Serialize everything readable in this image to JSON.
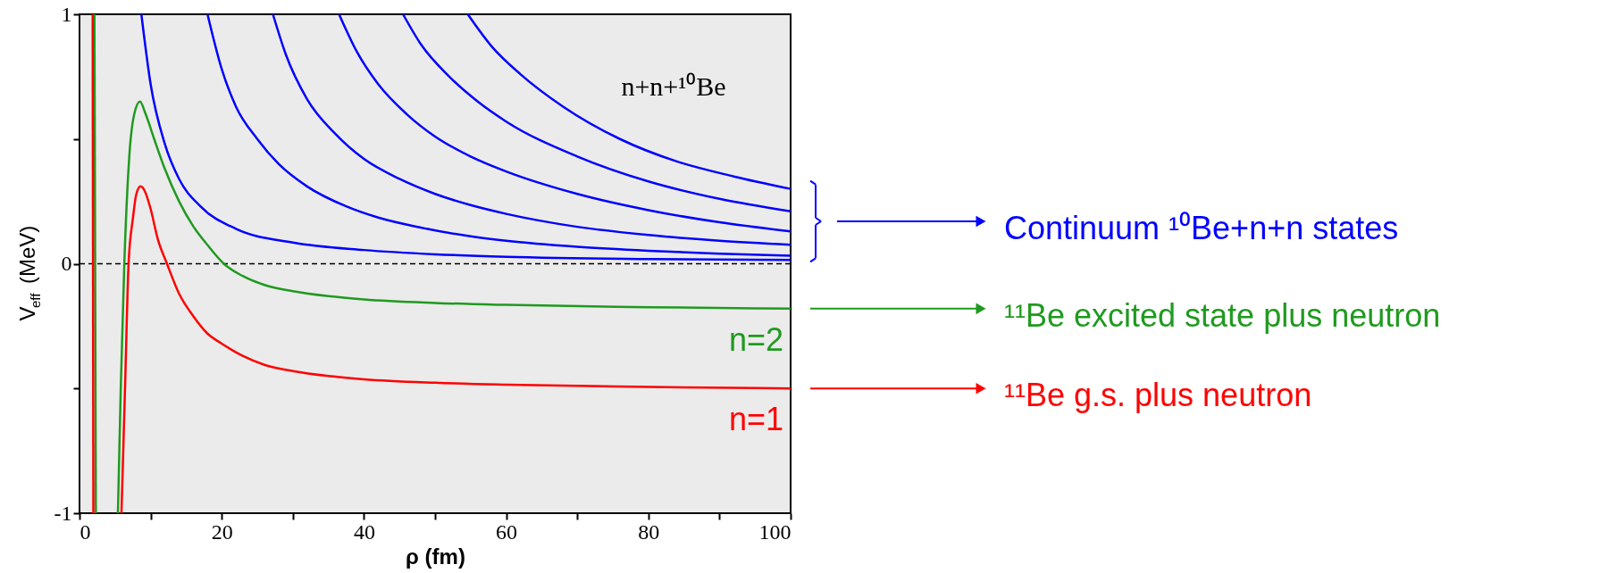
{
  "chart_data": {
    "type": "line",
    "xlabel": "ρ (fm)",
    "ylabel": "V$_{eff}$ (MeV)",
    "xlim": [
      0,
      100
    ],
    "ylim": [
      -1,
      1
    ],
    "xticks": [
      0,
      {
        "value": 10,
        "label": null
      },
      20,
      {
        "value": 30,
        "label": null
      },
      40,
      {
        "value": 50,
        "label": null
      },
      60,
      {
        "value": 70,
        "label": null
      },
      80,
      {
        "value": 90,
        "label": null
      },
      100
    ],
    "yticks": [
      -1,
      {
        "value": -0.5,
        "label": null
      },
      0,
      {
        "value": 0.5,
        "label": null
      },
      1
    ],
    "grid": false,
    "line_style": "solid",
    "ref_lines": [
      {
        "axis": "y",
        "value": 0,
        "color": "#000000",
        "line_style": "dashed"
      }
    ],
    "annotations": [
      "n+n+¹⁰Be",
      "Continuum ¹⁰Be+n+n states",
      "¹¹Be excited state plus neutron",
      "¹¹Be g.s. plus neutron"
    ],
    "series": [
      {
        "color": "#0000ff",
        "x": [
          8.7,
          10,
          12,
          14,
          17,
          22,
          30,
          40,
          50,
          60,
          80,
          100
        ],
        "values": [
          1,
          0.72,
          0.48,
          0.34,
          0.23,
          0.14,
          0.085,
          0.055,
          0.038,
          0.028,
          0.019,
          0.015
        ]
      },
      {
        "color": "#0000ff",
        "x": [
          18,
          20,
          22,
          25,
          28,
          32,
          37.5,
          42,
          48,
          55,
          60,
          70,
          80,
          90,
          100
        ],
        "values": [
          1,
          0.78,
          0.63,
          0.5,
          0.4,
          0.31,
          0.23,
          0.185,
          0.145,
          0.11,
          0.092,
          0.068,
          0.052,
          0.04,
          0.032
        ]
      },
      {
        "color": "#0000ff",
        "x": [
          27.2,
          29,
          32,
          36,
          40,
          45,
          50,
          55,
          60,
          70,
          80,
          90,
          100
        ],
        "values": [
          1,
          0.84,
          0.66,
          0.52,
          0.42,
          0.34,
          0.28,
          0.235,
          0.2,
          0.148,
          0.115,
          0.092,
          0.076
        ]
      },
      {
        "color": "#0000ff",
        "x": [
          36.5,
          39,
          42,
          46,
          50,
          55,
          60,
          70,
          80,
          90,
          100
        ],
        "values": [
          1,
          0.85,
          0.72,
          0.6,
          0.51,
          0.43,
          0.37,
          0.28,
          0.215,
          0.166,
          0.13
        ]
      },
      {
        "color": "#0000ff",
        "x": [
          45.5,
          48,
          52,
          56,
          60,
          70,
          80,
          90,
          100
        ],
        "values": [
          1,
          0.88,
          0.75,
          0.65,
          0.57,
          0.43,
          0.33,
          0.26,
          0.21
        ]
      },
      {
        "color": "#0000ff",
        "x": [
          54.6,
          58,
          62,
          68,
          76,
          84,
          92,
          100
        ],
        "values": [
          1,
          0.87,
          0.76,
          0.63,
          0.5,
          0.41,
          0.35,
          0.3
        ]
      },
      {
        "name": "n=2",
        "color": "#1f9a1f",
        "x": [
          2.1,
          2.3,
          4,
          5.4,
          5.8,
          6.3,
          7,
          7.7,
          8.5,
          9.3,
          10.5,
          12,
          14,
          16,
          18,
          20.3,
          23,
          26,
          30,
          35,
          40,
          50,
          60,
          80,
          100
        ],
        "values": [
          1,
          -1,
          null,
          -1,
          -0.5,
          0,
          0.43,
          0.6,
          0.65,
          0.6,
          0.5,
          0.38,
          0.25,
          0.15,
          0.075,
          0,
          -0.05,
          -0.085,
          -0.11,
          -0.13,
          -0.143,
          -0.157,
          -0.165,
          -0.174,
          -0.18
        ]
      },
      {
        "name": "n=1",
        "color": "#ff0000",
        "x": [
          1.85,
          1.95,
          4,
          5.9,
          6.4,
          6.9,
          7.5,
          8,
          8.6,
          9.2,
          10,
          11,
          12.3,
          14,
          16,
          18,
          20,
          23,
          26,
          30,
          35,
          40,
          50,
          60,
          80,
          100
        ],
        "values": [
          1,
          -1,
          null,
          -1,
          -0.5,
          0,
          0.18,
          0.28,
          0.31,
          0.29,
          0.22,
          0.1,
          0,
          -0.12,
          -0.21,
          -0.28,
          -0.32,
          -0.37,
          -0.405,
          -0.43,
          -0.45,
          -0.463,
          -0.477,
          -0.485,
          -0.494,
          -0.5
        ]
      }
    ]
  }
}
